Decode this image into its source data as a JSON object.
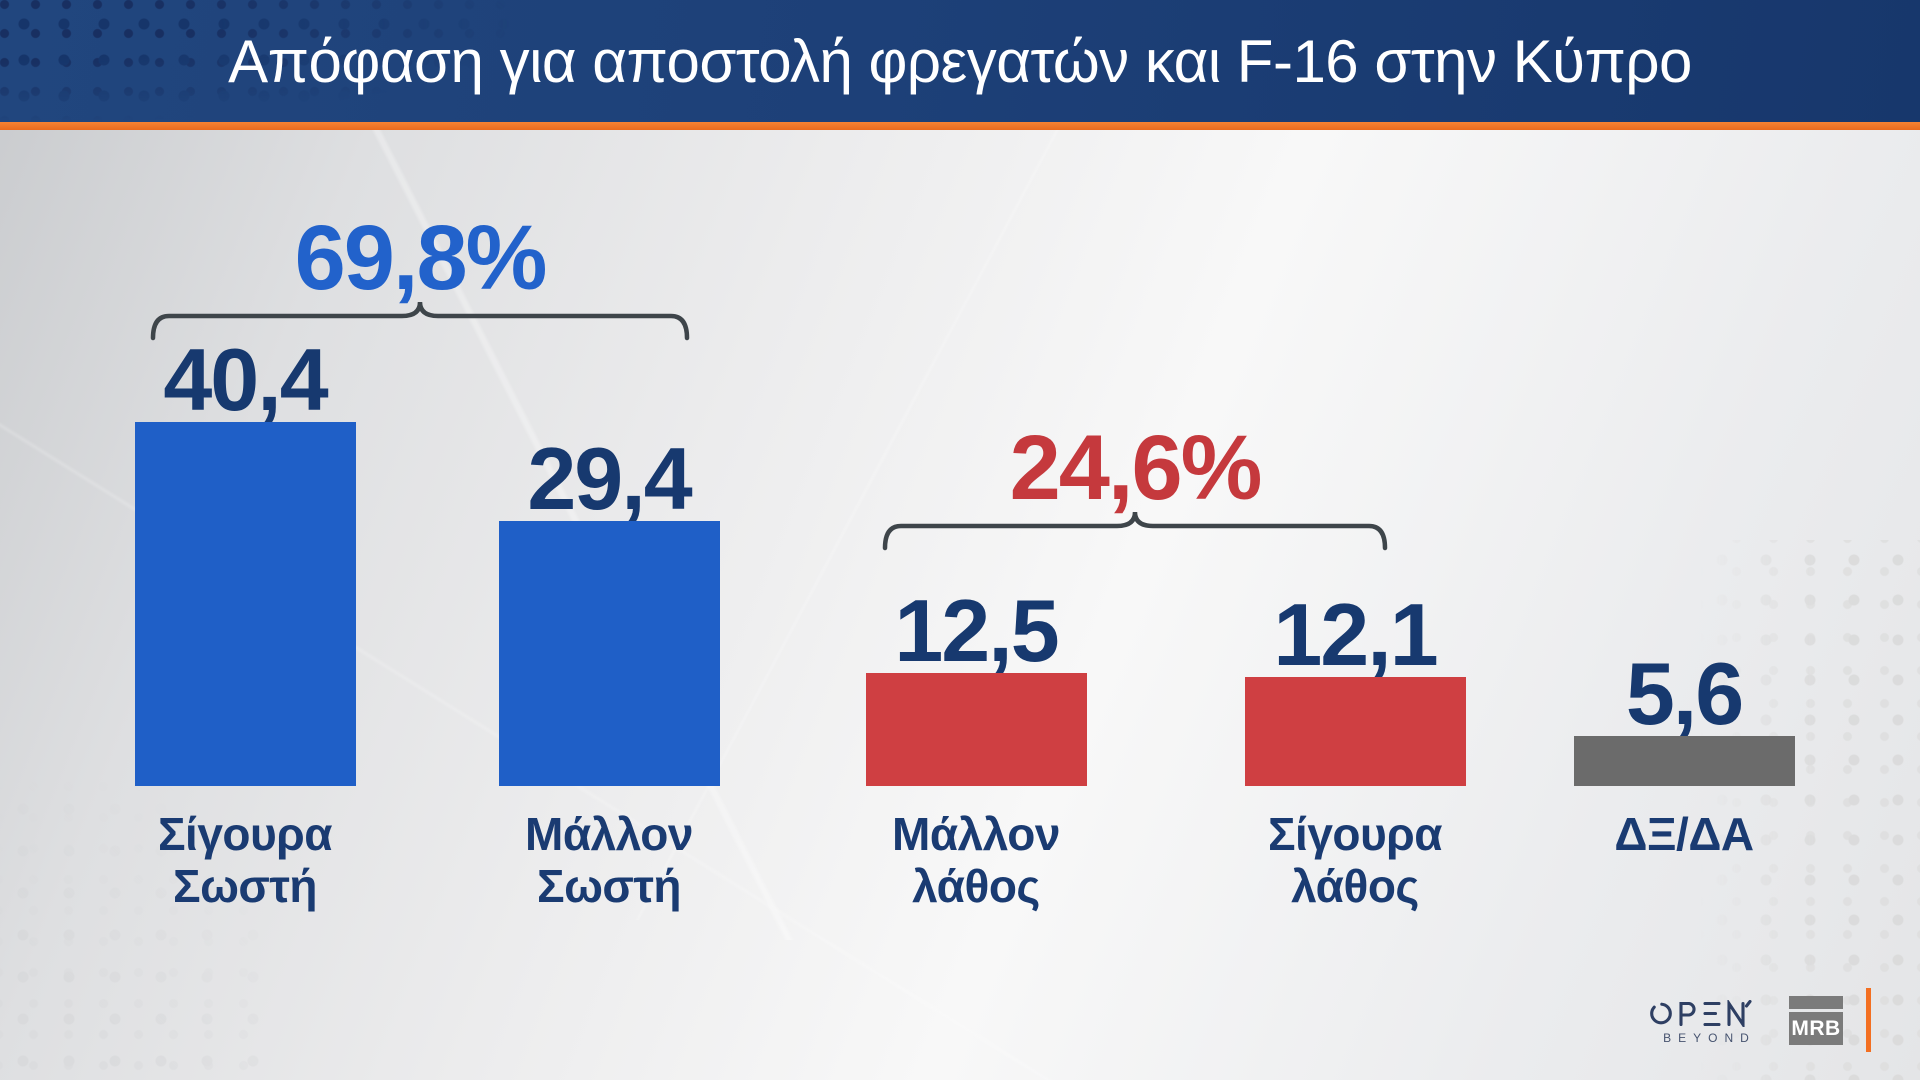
{
  "title": "Απόφαση για αποστολή φρεγατών και F-16 στην Κύπρο",
  "chart_data": {
    "type": "bar",
    "title": "Απόφαση για αποστολή φρεγατών και F-16 στην Κύπρο",
    "unit": "%",
    "ylim": [
      0,
      45
    ],
    "grid": false,
    "categories": [
      "Σίγουρα Σωστή",
      "Μάλλον Σωστή",
      "Μάλλον λάθος",
      "Σίγουρα λάθος",
      "ΔΞ/ΔΑ"
    ],
    "values": [
      40.4,
      29.4,
      12.5,
      12.1,
      5.6
    ],
    "bars": [
      {
        "category_lines": [
          "Σίγουρα",
          "Σωστή"
        ],
        "value": 40.4,
        "value_label": "40,4",
        "color": "#1f5fc7"
      },
      {
        "category_lines": [
          "Μάλλον",
          "Σωστή"
        ],
        "value": 29.4,
        "value_label": "29,4",
        "color": "#1f5fc7"
      },
      {
        "category_lines": [
          "Μάλλον",
          "λάθος"
        ],
        "value": 12.5,
        "value_label": "12,5",
        "color": "#cf3f42"
      },
      {
        "category_lines": [
          "Σίγουρα",
          "λάθος"
        ],
        "value": 12.1,
        "value_label": "12,1",
        "color": "#cf3f42"
      },
      {
        "category_lines": [
          "ΔΞ/ΔΑ"
        ],
        "value": 5.6,
        "value_label": "5,6",
        "color": "#6b6b6b"
      }
    ],
    "groups": [
      {
        "label": "69,8%",
        "sum_of_bars": [
          0,
          1
        ],
        "color": "#2262cb"
      },
      {
        "label": "24,6%",
        "sum_of_bars": [
          2,
          3
        ],
        "color": "#c5393d"
      }
    ],
    "annotation_colors": {
      "value_text": "#17396f",
      "category_text": "#1a3b72",
      "bracket": "#3e454a"
    }
  },
  "header": {
    "background": "#1d4078",
    "accent_line": "#ee7125"
  },
  "footer": {
    "open_label": "OPEN",
    "open_sub": "BEYOND",
    "mrb_label": "MRB"
  }
}
